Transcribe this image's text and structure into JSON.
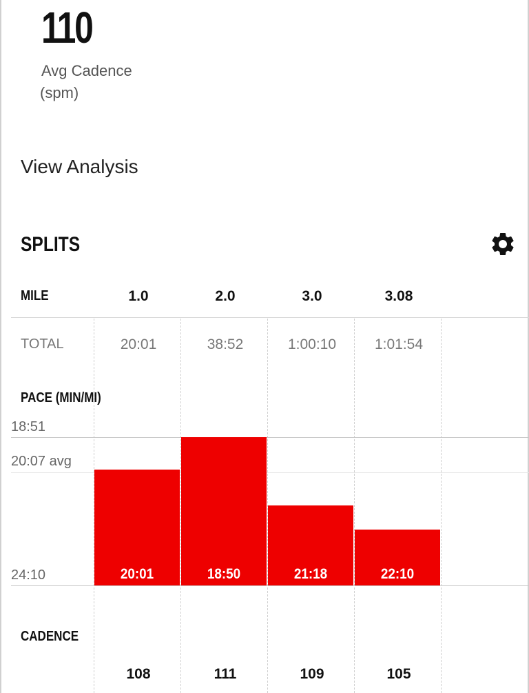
{
  "summary": {
    "avg_cadence_value": "110",
    "avg_cadence_label": "Avg Cadence",
    "avg_cadence_unit": "(spm)",
    "view_analysis": "View Analysis"
  },
  "splits": {
    "title": "SPLITS",
    "settings_icon": "gear-icon",
    "mile_label": "MILE",
    "miles": [
      "1.0",
      "2.0",
      "3.0",
      "3.08"
    ],
    "total_label": "TOTAL",
    "totals": [
      "20:01",
      "38:52",
      "1:00:10",
      "1:01:54"
    ],
    "pace_label": "PACE (MIN/MI)",
    "cadence_label": "CADENCE",
    "cadences": [
      "108",
      "111",
      "109",
      "105"
    ]
  },
  "chart_data": {
    "type": "bar",
    "categories": [
      "1.0",
      "2.0",
      "3.0",
      "3.08"
    ],
    "values": [
      "20:01",
      "18:50",
      "21:18",
      "22:10"
    ],
    "values_seconds": [
      1201,
      1130,
      1278,
      1330
    ],
    "ylabel": "PACE (MIN/MI)",
    "y_ticks": [
      "18:51",
      "20:07 avg",
      "24:10"
    ],
    "y_ticks_seconds": [
      1131,
      1207,
      1450
    ],
    "ylim_seconds": [
      1131,
      1450
    ],
    "inverted": true,
    "bar_color": "#ee0000"
  },
  "colors": {
    "accent": "#ee0000",
    "text": "#111111",
    "muted": "#777777"
  }
}
